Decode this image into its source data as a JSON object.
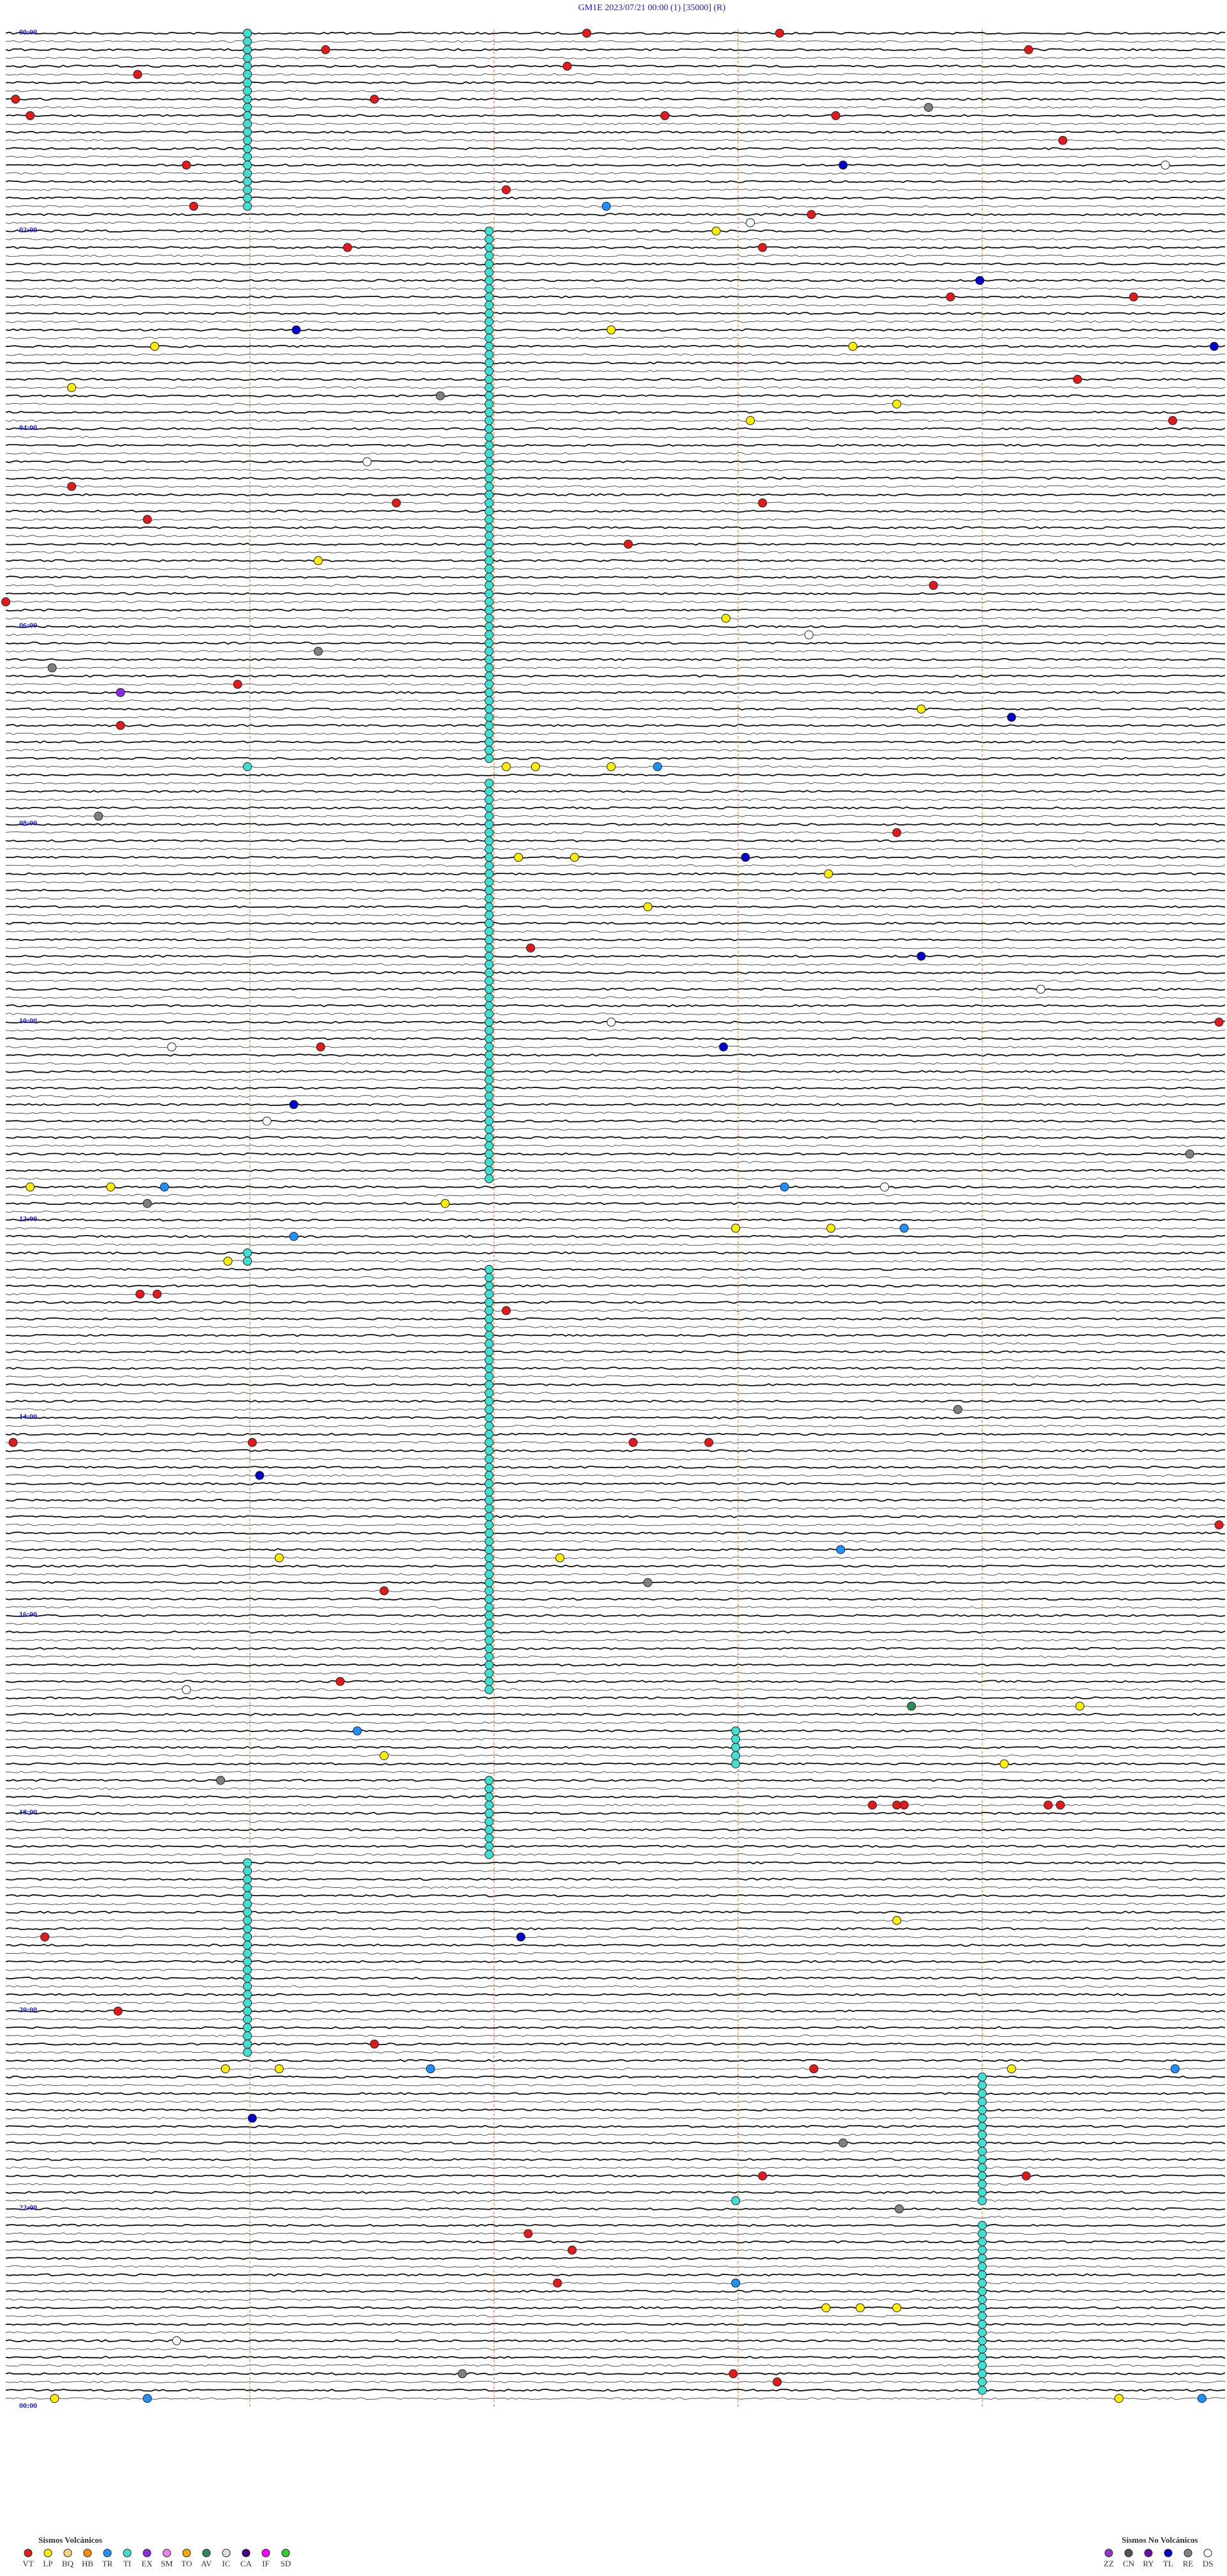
{
  "chart_data": {
    "type": "helicorder",
    "title": "GM1E     2023/07/21 00:00     (1)     [35000]   (R)",
    "rows": 288,
    "row_minutes": 5,
    "minute_ticks": [
      1,
      2,
      3,
      4
    ],
    "hour_labels": [
      "00:00",
      "02:00",
      "04:00",
      "06:00",
      "08:00",
      "10:00",
      "12:00",
      "14:00",
      "16:00",
      "18:00",
      "20:00",
      "22:00",
      "00:00"
    ],
    "events": [
      {
        "row": 0,
        "minute": 2.38,
        "type": "VT"
      },
      {
        "row": 0,
        "minute": 3.17,
        "type": "VT"
      },
      {
        "row": 2,
        "minute": 1.31,
        "type": "VT"
      },
      {
        "row": 2,
        "minute": 4.19,
        "type": "VT"
      },
      {
        "row": 4,
        "minute": 2.3,
        "type": "VT"
      },
      {
        "row": 5,
        "minute": 0.54,
        "type": "VT"
      },
      {
        "row": 8,
        "minute": 0.04,
        "type": "VT"
      },
      {
        "row": 8,
        "minute": 1.51,
        "type": "VT"
      },
      {
        "row": 9,
        "minute": 3.78,
        "type": "RE"
      },
      {
        "row": 10,
        "minute": 0.1,
        "type": "VT"
      },
      {
        "row": 10,
        "minute": 2.7,
        "type": "VT"
      },
      {
        "row": 10,
        "minute": 3.4,
        "type": "VT"
      },
      {
        "row": 13,
        "minute": 4.33,
        "type": "VT"
      },
      {
        "row": 16,
        "minute": 3.43,
        "type": "TL"
      },
      {
        "row": 16,
        "minute": 0.74,
        "type": "VT"
      },
      {
        "row": 16,
        "minute": 4.75,
        "type": "DS"
      },
      {
        "row": 19,
        "minute": 2.05,
        "type": "VT"
      },
      {
        "row": 21,
        "minute": 0.77,
        "type": "VT"
      },
      {
        "row": 21,
        "minute": 2.46,
        "type": "TR"
      },
      {
        "row": 23,
        "minute": 3.05,
        "type": "DS"
      },
      {
        "row": 22,
        "minute": 3.3,
        "type": "VT"
      },
      {
        "row": 24,
        "minute": 2.91,
        "type": "LP"
      },
      {
        "row": 26,
        "minute": 1.4,
        "type": "VT"
      },
      {
        "row": 26,
        "minute": 3.1,
        "type": "VT"
      },
      {
        "row": 30,
        "minute": 3.99,
        "type": "TL"
      },
      {
        "row": 32,
        "minute": 3.87,
        "type": "VT"
      },
      {
        "row": 32,
        "minute": 4.62,
        "type": "VT"
      },
      {
        "row": 36,
        "minute": 1.19,
        "type": "TL"
      },
      {
        "row": 36,
        "minute": 2.48,
        "type": "LP"
      },
      {
        "row": 38,
        "minute": 0.61,
        "type": "LP"
      },
      {
        "row": 38,
        "minute": 4.95,
        "type": "TL"
      },
      {
        "row": 38,
        "minute": 3.47,
        "type": "LP"
      },
      {
        "row": 42,
        "minute": 4.39,
        "type": "VT"
      },
      {
        "row": 43,
        "minute": 0.27,
        "type": "LP"
      },
      {
        "row": 44,
        "minute": 1.78,
        "type": "RE"
      },
      {
        "row": 45,
        "minute": 3.65,
        "type": "LP"
      },
      {
        "row": 47,
        "minute": 3.05,
        "type": "LP"
      },
      {
        "row": 47,
        "minute": 4.78,
        "type": "VT"
      },
      {
        "row": 52,
        "minute": 1.48,
        "type": "DS"
      },
      {
        "row": 55,
        "minute": 0.27,
        "type": "VT"
      },
      {
        "row": 57,
        "minute": 1.6,
        "type": "VT"
      },
      {
        "row": 57,
        "minute": 3.1,
        "type": "VT"
      },
      {
        "row": 59,
        "minute": 0.58,
        "type": "VT"
      },
      {
        "row": 62,
        "minute": 2.55,
        "type": "VT"
      },
      {
        "row": 64,
        "minute": 1.28,
        "type": "LP"
      },
      {
        "row": 67,
        "minute": 3.8,
        "type": "VT"
      },
      {
        "row": 69,
        "minute": 0.0,
        "type": "VT"
      },
      {
        "row": 71,
        "minute": 2.95,
        "type": "LP"
      },
      {
        "row": 73,
        "minute": 3.29,
        "type": "DS"
      },
      {
        "row": 75,
        "minute": 1.28,
        "type": "RE"
      },
      {
        "row": 77,
        "minute": 0.19,
        "type": "RE"
      },
      {
        "row": 79,
        "minute": 0.95,
        "type": "VT"
      },
      {
        "row": 80,
        "minute": 0.47,
        "type": "EX"
      },
      {
        "row": 82,
        "minute": 3.75,
        "type": "LP"
      },
      {
        "row": 83,
        "minute": 4.12,
        "type": "TL"
      },
      {
        "row": 84,
        "minute": 0.47,
        "type": "VT"
      },
      {
        "row": 89,
        "minute": 2.05,
        "type": "LP"
      },
      {
        "row": 89,
        "minute": 2.17,
        "type": "LP"
      },
      {
        "row": 89,
        "minute": 2.48,
        "type": "LP"
      },
      {
        "row": 89,
        "minute": 2.67,
        "type": "TR"
      },
      {
        "row": 89,
        "minute": 0.99,
        "type": "TI"
      },
      {
        "row": 95,
        "minute": 0.38,
        "type": "RE"
      },
      {
        "row": 97,
        "minute": 3.65,
        "type": "VT"
      },
      {
        "row": 100,
        "minute": 2.1,
        "type": "LP"
      },
      {
        "row": 100,
        "minute": 2.33,
        "type": "LP"
      },
      {
        "row": 100,
        "minute": 3.03,
        "type": "TL"
      },
      {
        "row": 102,
        "minute": 3.37,
        "type": "LP"
      },
      {
        "row": 106,
        "minute": 2.63,
        "type": "LP"
      },
      {
        "row": 112,
        "minute": 3.75,
        "type": "TL"
      },
      {
        "row": 111,
        "minute": 2.15,
        "type": "VT"
      },
      {
        "row": 116,
        "minute": 4.24,
        "type": "DS"
      },
      {
        "row": 120,
        "minute": 4.97,
        "type": "VT"
      },
      {
        "row": 120,
        "minute": 2.48,
        "type": "DS"
      },
      {
        "row": 123,
        "minute": 2.94,
        "type": "TL"
      },
      {
        "row": 123,
        "minute": 1.29,
        "type": "VT"
      },
      {
        "row": 123,
        "minute": 0.68,
        "type": "DS"
      },
      {
        "row": 130,
        "minute": 1.18,
        "type": "TL"
      },
      {
        "row": 132,
        "minute": 1.07,
        "type": "DS"
      },
      {
        "row": 136,
        "minute": 4.85,
        "type": "RE"
      },
      {
        "row": 140,
        "minute": 0.1,
        "type": "LP"
      },
      {
        "row": 140,
        "minute": 0.43,
        "type": "LP"
      },
      {
        "row": 140,
        "minute": 0.65,
        "type": "TR"
      },
      {
        "row": 140,
        "minute": 3.19,
        "type": "TR"
      },
      {
        "row": 140,
        "minute": 3.6,
        "type": "DS"
      },
      {
        "row": 142,
        "minute": 0.58,
        "type": "RE"
      },
      {
        "row": 142,
        "minute": 1.8,
        "type": "LP"
      },
      {
        "row": 145,
        "minute": 2.99,
        "type": "LP"
      },
      {
        "row": 145,
        "minute": 3.38,
        "type": "LP"
      },
      {
        "row": 145,
        "minute": 3.68,
        "type": "TR"
      },
      {
        "row": 146,
        "minute": 1.18,
        "type": "TR"
      },
      {
        "row": 149,
        "minute": 0.91,
        "type": "LP"
      },
      {
        "row": 153,
        "minute": 0.55,
        "type": "VT"
      },
      {
        "row": 153,
        "minute": 0.62,
        "type": "VT"
      },
      {
        "row": 155,
        "minute": 2.05,
        "type": "VT"
      },
      {
        "row": 167,
        "minute": 3.9,
        "type": "RE"
      },
      {
        "row": 171,
        "minute": 0.03,
        "type": "VT"
      },
      {
        "row": 171,
        "minute": 1.01,
        "type": "VT"
      },
      {
        "row": 171,
        "minute": 2.57,
        "type": "VT"
      },
      {
        "row": 171,
        "minute": 2.88,
        "type": "VT"
      },
      {
        "row": 175,
        "minute": 1.04,
        "type": "TL"
      },
      {
        "row": 181,
        "minute": 4.97,
        "type": "VT"
      },
      {
        "row": 184,
        "minute": 3.42,
        "type": "TR"
      },
      {
        "row": 185,
        "minute": 1.12,
        "type": "LP"
      },
      {
        "row": 185,
        "minute": 2.27,
        "type": "LP"
      },
      {
        "row": 188,
        "minute": 2.63,
        "type": "RE"
      },
      {
        "row": 189,
        "minute": 1.55,
        "type": "VT"
      },
      {
        "row": 200,
        "minute": 1.37,
        "type": "VT"
      },
      {
        "row": 201,
        "minute": 0.74,
        "type": "DS"
      },
      {
        "row": 203,
        "minute": 3.71,
        "type": "AV"
      },
      {
        "row": 203,
        "minute": 4.4,
        "type": "LP"
      },
      {
        "row": 206,
        "minute": 1.44,
        "type": "TR"
      },
      {
        "row": 209,
        "minute": 1.55,
        "type": "LP"
      },
      {
        "row": 210,
        "minute": 4.09,
        "type": "LP"
      },
      {
        "row": 212,
        "minute": 0.88,
        "type": "RE"
      },
      {
        "row": 215,
        "minute": 3.55,
        "type": "VT"
      },
      {
        "row": 215,
        "minute": 3.65,
        "type": "VT"
      },
      {
        "row": 215,
        "minute": 3.68,
        "type": "VT"
      },
      {
        "row": 215,
        "minute": 4.27,
        "type": "VT"
      },
      {
        "row": 215,
        "minute": 4.32,
        "type": "VT"
      },
      {
        "row": 231,
        "minute": 2.11,
        "type": "TL"
      },
      {
        "row": 231,
        "minute": 0.16,
        "type": "VT"
      },
      {
        "row": 229,
        "minute": 3.65,
        "type": "LP"
      },
      {
        "row": 240,
        "minute": 0.46,
        "type": "VT"
      },
      {
        "row": 244,
        "minute": 1.51,
        "type": "VT"
      },
      {
        "row": 247,
        "minute": 0.9,
        "type": "LP"
      },
      {
        "row": 247,
        "minute": 1.12,
        "type": "LP"
      },
      {
        "row": 247,
        "minute": 1.74,
        "type": "TR"
      },
      {
        "row": 247,
        "minute": 3.31,
        "type": "VT"
      },
      {
        "row": 247,
        "minute": 4.12,
        "type": "LP"
      },
      {
        "row": 247,
        "minute": 4.79,
        "type": "TR"
      },
      {
        "row": 253,
        "minute": 1.01,
        "type": "TL"
      },
      {
        "row": 256,
        "minute": 3.43,
        "type": "RE"
      },
      {
        "row": 260,
        "minute": 4.18,
        "type": "VT"
      },
      {
        "row": 260,
        "minute": 3.1,
        "type": "VT"
      },
      {
        "row": 263,
        "minute": 2.99,
        "type": "TI"
      },
      {
        "row": 264,
        "minute": 3.66,
        "type": "RE"
      },
      {
        "row": 267,
        "minute": 2.14,
        "type": "VT"
      },
      {
        "row": 269,
        "minute": 2.32,
        "type": "VT"
      },
      {
        "row": 273,
        "minute": 2.26,
        "type": "VT"
      },
      {
        "row": 273,
        "minute": 2.99,
        "type": "TR"
      },
      {
        "row": 276,
        "minute": 3.36,
        "type": "LP"
      },
      {
        "row": 276,
        "minute": 3.5,
        "type": "LP"
      },
      {
        "row": 276,
        "minute": 3.65,
        "type": "LP"
      },
      {
        "row": 280,
        "minute": 0.7,
        "type": "DS"
      },
      {
        "row": 284,
        "minute": 1.87,
        "type": "RE"
      },
      {
        "row": 284,
        "minute": 2.98,
        "type": "VT"
      },
      {
        "row": 285,
        "minute": 3.16,
        "type": "VT"
      },
      {
        "row": 287,
        "minute": 0.2,
        "type": "LP"
      },
      {
        "row": 287,
        "minute": 0.58,
        "type": "TR"
      },
      {
        "row": 287,
        "minute": 4.56,
        "type": "LP"
      },
      {
        "row": 287,
        "minute": 4.9,
        "type": "TR"
      }
    ],
    "tremor_runs": [
      {
        "type": "TI",
        "minute": 0.99,
        "first_row": 0,
        "last_row": 21
      },
      {
        "type": "TI",
        "minute": 1.98,
        "first_row": 24,
        "last_row": 88
      },
      {
        "type": "TI",
        "minute": 1.98,
        "first_row": 91,
        "last_row": 139
      },
      {
        "type": "TI",
        "minute": 0.99,
        "first_row": 148,
        "last_row": 149
      },
      {
        "type": "TI",
        "minute": 1.98,
        "first_row": 150,
        "last_row": 201
      },
      {
        "type": "TI",
        "minute": 2.99,
        "first_row": 206,
        "last_row": 210
      },
      {
        "type": "TI",
        "minute": 1.98,
        "first_row": 212,
        "last_row": 221
      },
      {
        "type": "TI",
        "minute": 0.99,
        "first_row": 222,
        "last_row": 245
      },
      {
        "type": "TI",
        "minute": 4.0,
        "first_row": 248,
        "last_row": 263
      },
      {
        "type": "TI",
        "minute": 4.0,
        "first_row": 266,
        "last_row": 286
      }
    ],
    "legend_volcanic": {
      "title": "Sismos Volcánicos",
      "items": [
        {
          "code": "VT",
          "color": "#e31a1c"
        },
        {
          "code": "LP",
          "color": "#ffee00"
        },
        {
          "code": "BQ",
          "color": "#ffd47f"
        },
        {
          "code": "HB",
          "color": "#ff8c00"
        },
        {
          "code": "TR",
          "color": "#1e90ff"
        },
        {
          "code": "TI",
          "color": "#40e0d0"
        },
        {
          "code": "EX",
          "color": "#8a2be2"
        },
        {
          "code": "SM",
          "color": "#ee82ee"
        },
        {
          "code": "TO",
          "color": "#ffa500"
        },
        {
          "code": "AV",
          "color": "#2e8b57"
        },
        {
          "code": "IC",
          "color": "#dddddd"
        },
        {
          "code": "CA",
          "color": "#4b0082"
        },
        {
          "code": "IF",
          "color": "#ff00ff"
        },
        {
          "code": "SD",
          "color": "#32cd32"
        }
      ]
    },
    "legend_non_volcanic": {
      "title": "Sismos No Volcánicos",
      "items": [
        {
          "code": "ZZ",
          "color": "#9932cc"
        },
        {
          "code": "CN",
          "color": "#555555"
        },
        {
          "code": "RY",
          "color": "#6a0dad"
        },
        {
          "code": "TL",
          "color": "#0000cd"
        },
        {
          "code": "RE",
          "color": "#808080"
        },
        {
          "code": "DS",
          "color": "#ffffff"
        }
      ]
    }
  }
}
